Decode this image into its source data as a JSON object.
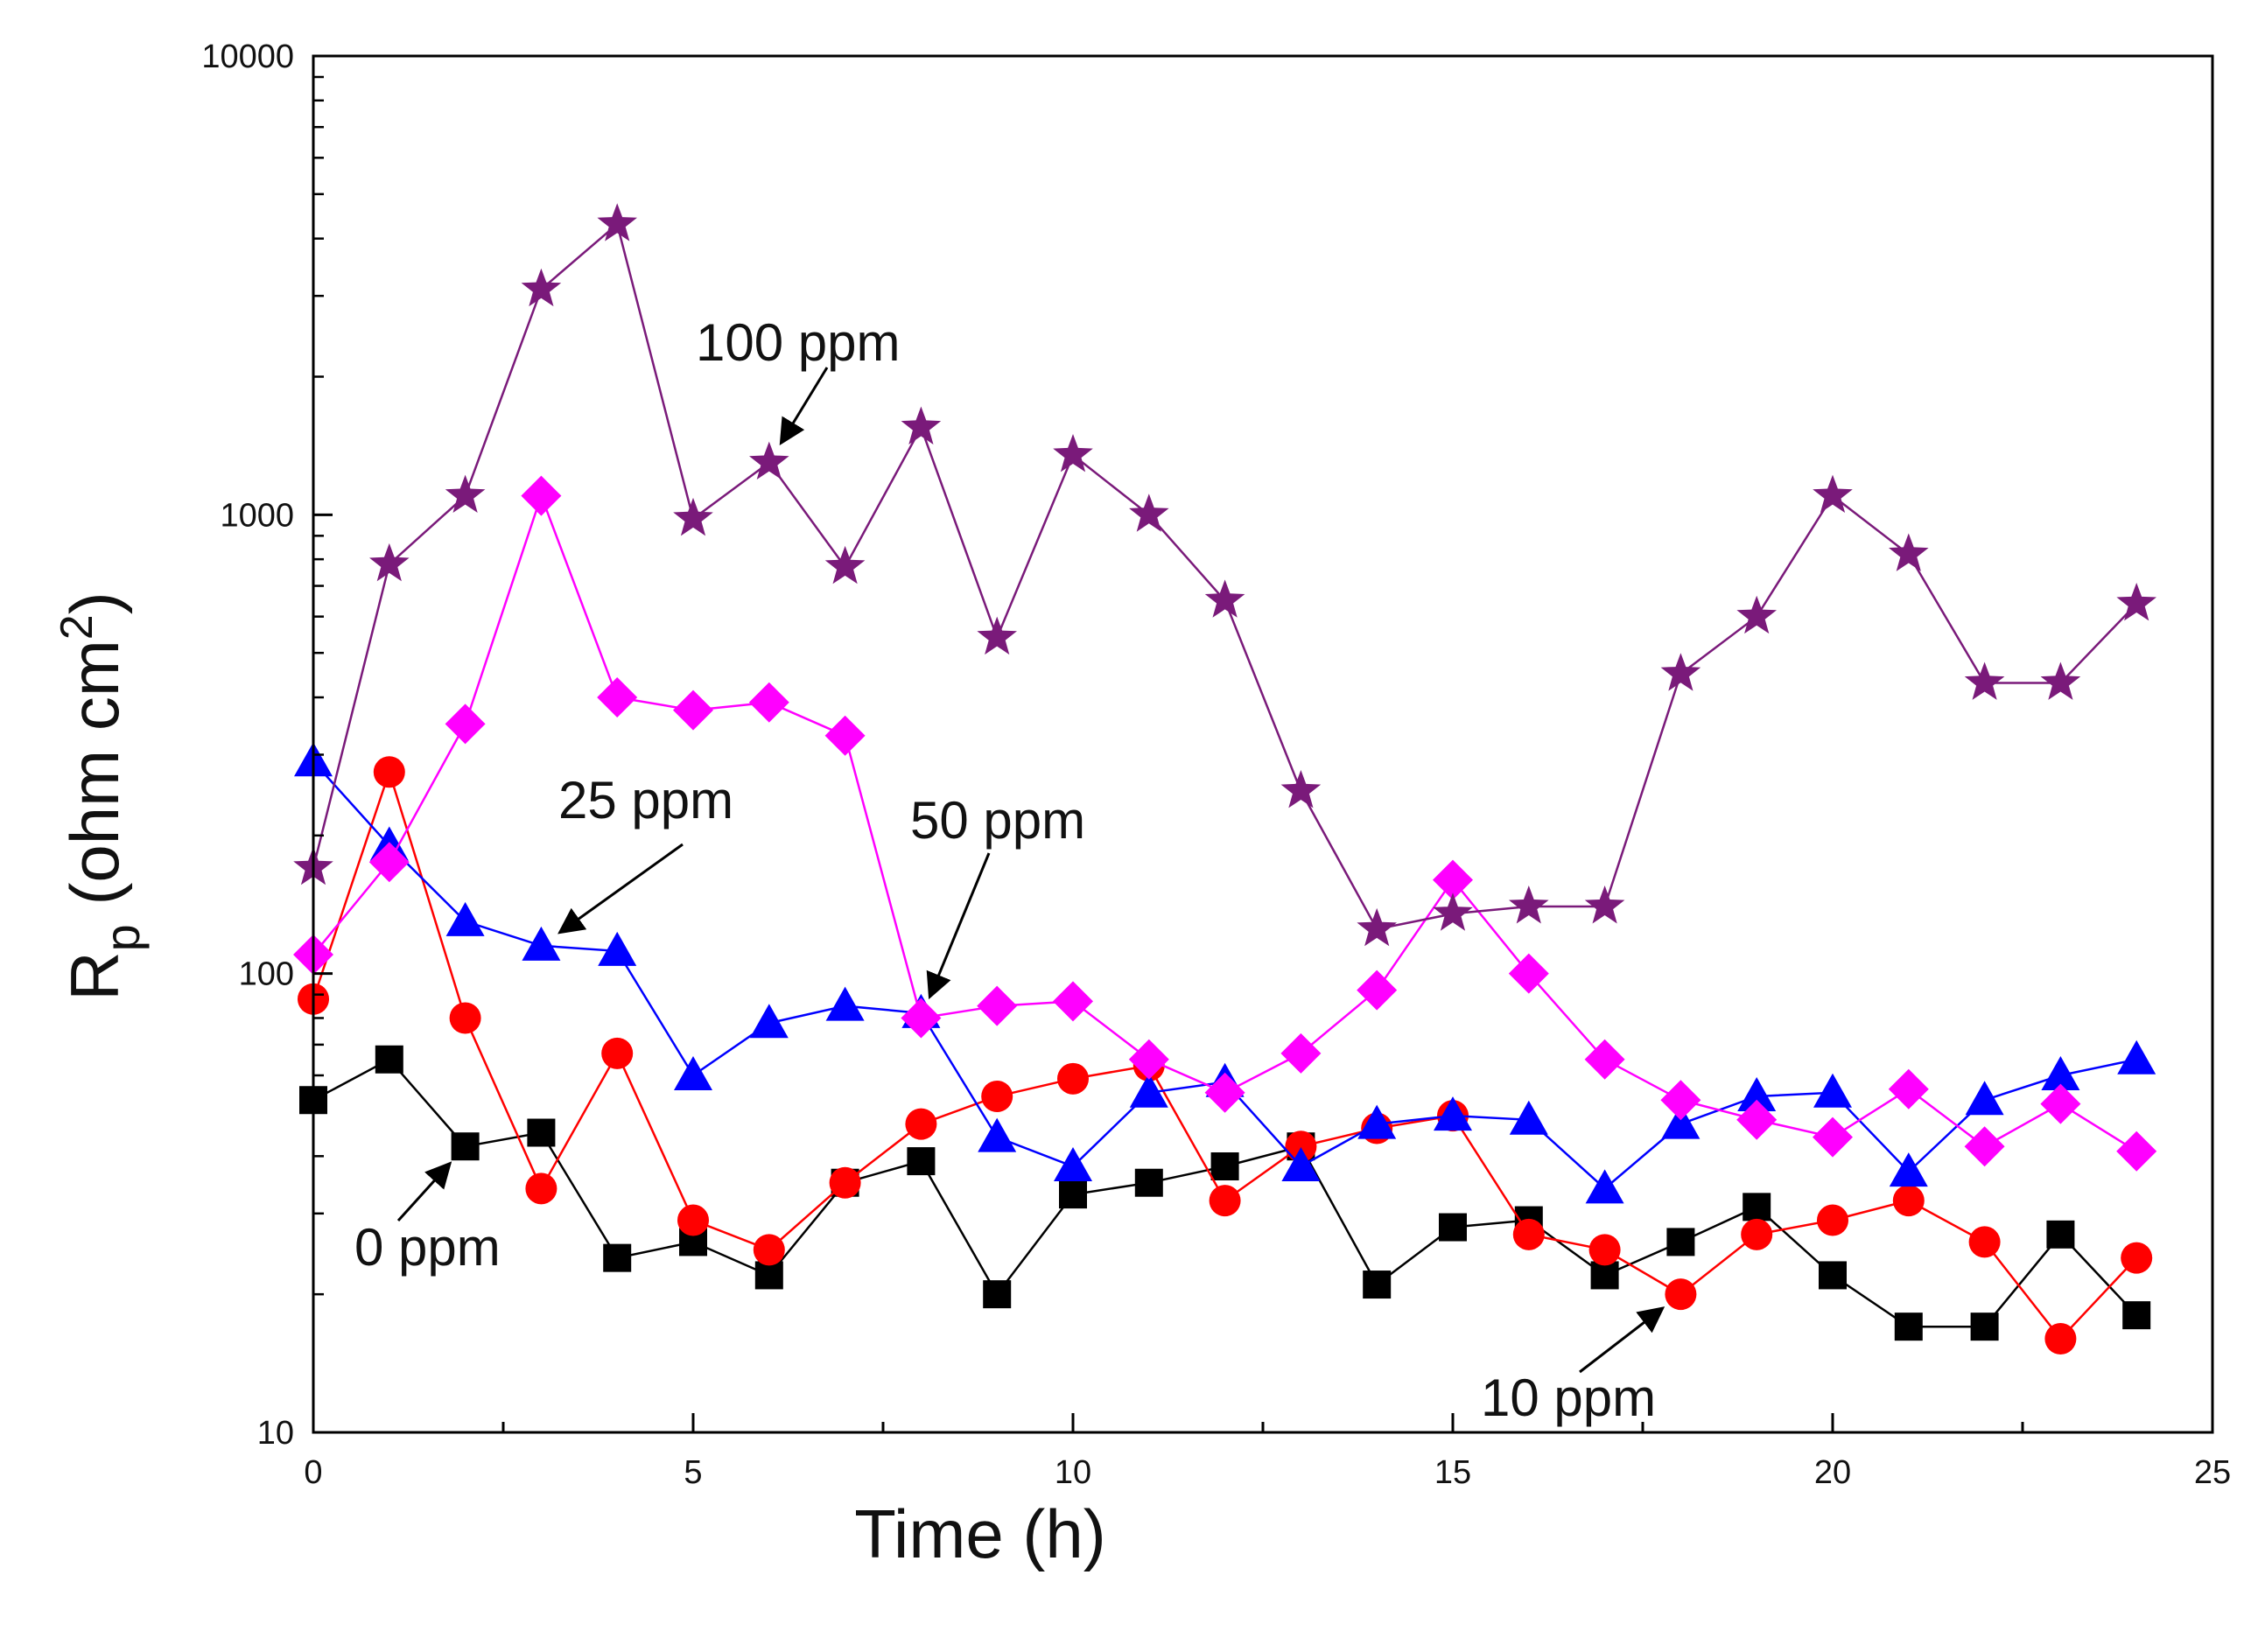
{
  "chart_data": {
    "type": "line",
    "title": "",
    "xlabel": "Time (h)",
    "ylabel": {
      "main": "R",
      "sub": "p",
      "unit_open": " (ohm cm",
      "unit_sup": "2",
      "unit_close": ")"
    },
    "xlim": [
      0,
      25
    ],
    "ylim": [
      10,
      10000
    ],
    "yscale": "log",
    "x_ticks": [
      0,
      5,
      10,
      15,
      20,
      25
    ],
    "x_tick_labels": [
      "0",
      "5",
      "10",
      "15",
      "20",
      "25"
    ],
    "y_ticks": [
      10,
      100,
      1000,
      10000
    ],
    "y_tick_labels": [
      "10",
      "100",
      "1000",
      "10000"
    ],
    "grid": false,
    "x": [
      0,
      1,
      2,
      3,
      4,
      5,
      6,
      7,
      8,
      9,
      10,
      11,
      12,
      13,
      14,
      15,
      16,
      17,
      18,
      19,
      20,
      21,
      22,
      23,
      24
    ],
    "series": [
      {
        "name": "0 ppm",
        "color": "#000000",
        "marker": "square",
        "values": [
          53,
          65,
          42,
          45,
          24,
          26,
          22,
          35,
          39,
          20,
          33,
          35,
          38,
          42,
          21,
          28,
          29,
          22,
          26,
          31,
          22,
          17,
          17,
          27,
          18
        ]
      },
      {
        "name": "10 ppm",
        "color": "#ff0000",
        "marker": "circle",
        "values": [
          88,
          275,
          80,
          34,
          67,
          29,
          25,
          35,
          47,
          54,
          59,
          63,
          32,
          42,
          46,
          49,
          27,
          25,
          20,
          27,
          29,
          32,
          26,
          16,
          24
        ]
      },
      {
        "name": "25 ppm",
        "color": "#0000ff",
        "marker": "triangle",
        "values": [
          290,
          190,
          130,
          115,
          112,
          60,
          78,
          85,
          82,
          44,
          38,
          55,
          58,
          38,
          47,
          49,
          48,
          34,
          47,
          54,
          55,
          37,
          53,
          60,
          65
        ]
      },
      {
        "name": "50 ppm",
        "color": "#ff00ff",
        "marker": "diamond",
        "values": [
          110,
          175,
          350,
          1100,
          400,
          375,
          390,
          330,
          80,
          85,
          87,
          65,
          55,
          67,
          92,
          160,
          100,
          65,
          53,
          48,
          44,
          56,
          42,
          52,
          41
        ]
      },
      {
        "name": "100 ppm",
        "color": "#7a1a7a",
        "marker": "star",
        "values": [
          170,
          780,
          1100,
          3100,
          4300,
          980,
          1300,
          770,
          1550,
          540,
          1350,
          1000,
          650,
          250,
          125,
          135,
          140,
          140,
          450,
          600,
          1100,
          820,
          430,
          430,
          640
        ]
      }
    ],
    "annotations": [
      {
        "text": "100 ppm",
        "points_to": "100 ppm",
        "target": [
          6,
          1300
        ]
      },
      {
        "text": "25 ppm",
        "points_to": "25 ppm",
        "target": [
          3,
          115
        ]
      },
      {
        "text": "50 ppm",
        "points_to": "50 ppm",
        "target": [
          8,
          80
        ]
      },
      {
        "text": "0 ppm",
        "points_to": "0 ppm",
        "target": [
          2,
          42
        ]
      },
      {
        "text": "10 ppm",
        "points_to": "10 ppm",
        "target": [
          18,
          20
        ]
      }
    ]
  }
}
